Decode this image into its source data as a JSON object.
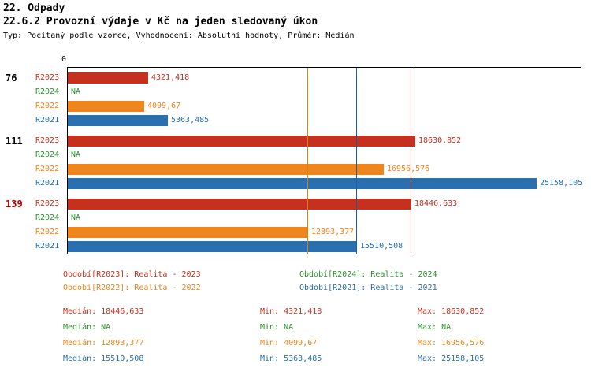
{
  "header": {
    "title1": "22. Odpady",
    "title2": "22.6.2 Provozní výdaje v Kč na jeden sledovaný úkon",
    "subtitle": "Typ: Počítaný podle vzorce, Vyhodnocení: Absolutní hodnoty, Průměr: Medián"
  },
  "chart_data": {
    "type": "bar",
    "orientation": "horizontal",
    "title": "22.6.2 Provozní výdaje v Kč na jeden sledovaný úkon",
    "axis": {
      "zero_label": "0",
      "xmin": 0,
      "xmax": 25158.105
    },
    "grid": false,
    "series_colors": {
      "R2023": "#c5301f",
      "R2024": "#2f8f2f",
      "R2022": "#ef851c",
      "R2021": "#2a70b0"
    },
    "groups": [
      {
        "label": "76",
        "label_color": "#000000",
        "bars": [
          {
            "series": "R2023",
            "value": 4321.418,
            "value_label": "4321,418"
          },
          {
            "series": "R2024",
            "value": null,
            "value_label": "NA"
          },
          {
            "series": "R2022",
            "value": 4099.67,
            "value_label": "4099,67"
          },
          {
            "series": "R2021",
            "value": 5363.485,
            "value_label": "5363,485"
          }
        ]
      },
      {
        "label": "111",
        "label_color": "#000000",
        "bars": [
          {
            "series": "R2023",
            "value": 18630.852,
            "value_label": "18630,852"
          },
          {
            "series": "R2024",
            "value": null,
            "value_label": "NA"
          },
          {
            "series": "R2022",
            "value": 16956.576,
            "value_label": "16956,576"
          },
          {
            "series": "R2021",
            "value": 25158.105,
            "value_label": "25158,105"
          }
        ]
      },
      {
        "label": "139",
        "label_color": "#c00000",
        "bars": [
          {
            "series": "R2023",
            "value": 18446.633,
            "value_label": "18446,633"
          },
          {
            "series": "R2024",
            "value": null,
            "value_label": "NA"
          },
          {
            "series": "R2022",
            "value": 12893.377,
            "value_label": "12893,377"
          },
          {
            "series": "R2021",
            "value": 15510.508,
            "value_label": "15510,508"
          }
        ]
      }
    ],
    "median_lines": [
      {
        "series": "R2023",
        "value": 18446.633,
        "color": "#8b1b0e"
      },
      {
        "series": "R2022",
        "value": 12893.377,
        "color": "#c98b0c"
      },
      {
        "series": "R2021",
        "value": 15510.508,
        "color": "#1f5f9a"
      }
    ]
  },
  "legend": [
    {
      "text": "Období[R2023]: Realita - 2023",
      "color": "#c5301f"
    },
    {
      "text": "Období[R2024]: Realita - 2024",
      "color": "#2f8f2f"
    },
    {
      "text": "Období[R2022]: Realita - 2022",
      "color": "#ef851c"
    },
    {
      "text": "Období[R2021]: Realita - 2021",
      "color": "#2a70b0"
    }
  ],
  "stats": [
    {
      "median_label": "Medián: 18446,633",
      "min_label": "Min: 4321,418",
      "max_label": "Max: 18630,852",
      "color": "#c5301f"
    },
    {
      "median_label": "Medián: NA",
      "min_label": "Min: NA",
      "max_label": "Max: NA",
      "color": "#2f8f2f"
    },
    {
      "median_label": "Medián: 12893,377",
      "min_label": "Min: 4099,67",
      "max_label": "Max: 16956,576",
      "color": "#ef851c"
    },
    {
      "median_label": "Medián: 15510,508",
      "min_label": "Min: 5363,485",
      "max_label": "Max: 25158,105",
      "color": "#2a70b0"
    }
  ]
}
